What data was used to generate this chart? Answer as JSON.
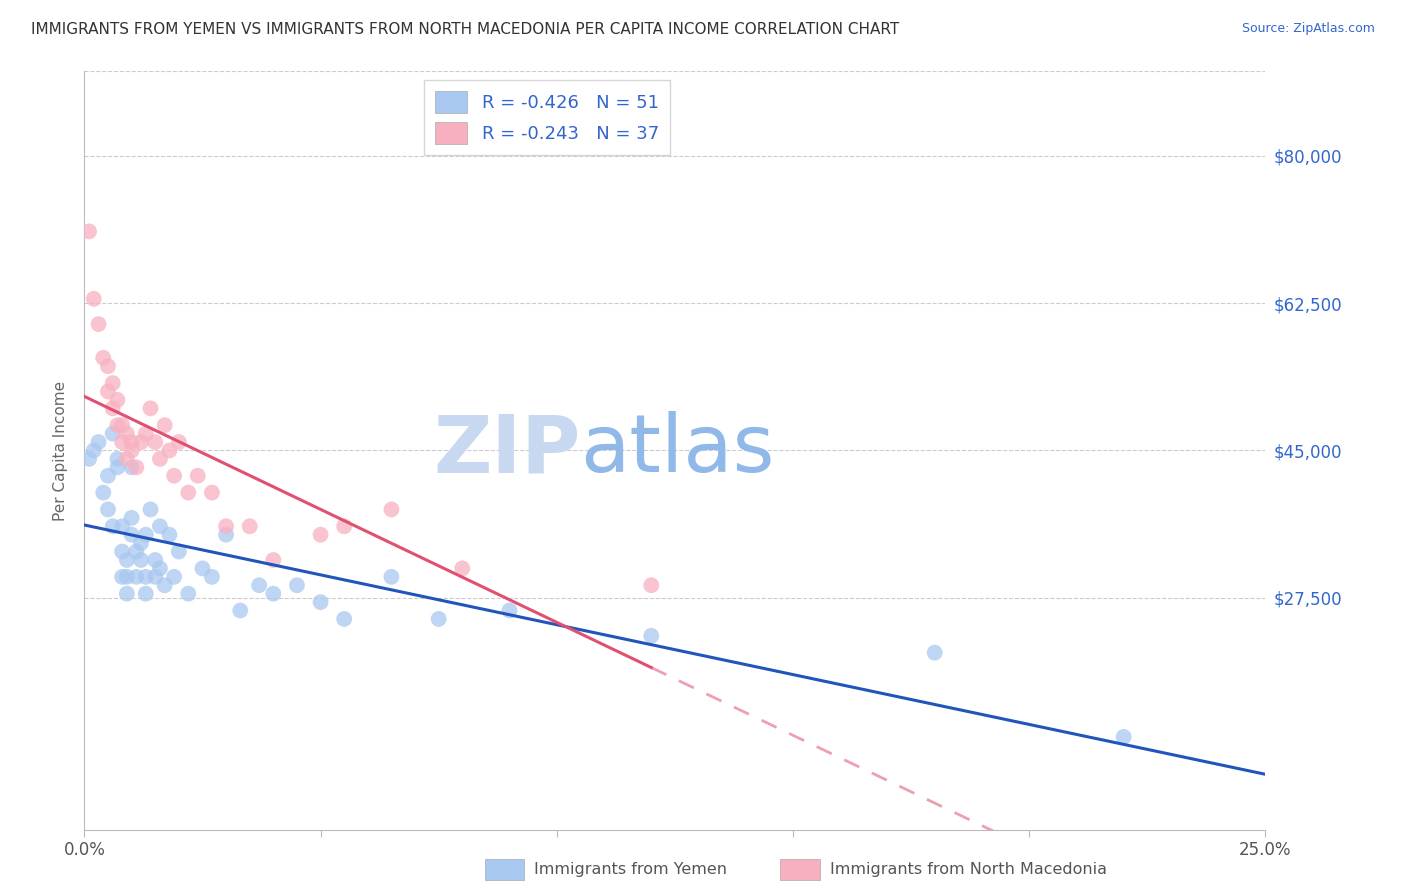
{
  "title": "IMMIGRANTS FROM YEMEN VS IMMIGRANTS FROM NORTH MACEDONIA PER CAPITA INCOME CORRELATION CHART",
  "source": "Source: ZipAtlas.com",
  "ylabel": "Per Capita Income",
  "x_min": 0.0,
  "x_max": 0.25,
  "y_min": 0,
  "y_max": 90000,
  "x_ticks": [
    0.0,
    0.05,
    0.1,
    0.15,
    0.2,
    0.25
  ],
  "x_tick_labels": [
    "0.0%",
    "",
    "",
    "",
    "",
    "25.0%"
  ],
  "y_ticks": [
    0,
    27500,
    45000,
    62500,
    80000
  ],
  "y_tick_labels": [
    "",
    "$27,500",
    "$45,000",
    "$62,500",
    "$80,000"
  ],
  "legend_label1": "Immigrants from Yemen",
  "legend_label2": "Immigrants from North Macedonia",
  "R1": -0.426,
  "N1": 51,
  "R2": -0.243,
  "N2": 37,
  "color_blue": "#A8C8F0",
  "color_pink": "#F8B0C0",
  "line_blue": "#2255BB",
  "line_pink": "#E05070",
  "watermark_zip": "ZIP",
  "watermark_atlas": "atlas",
  "watermark_color_zip": "#C8D8F0",
  "watermark_color_atlas": "#90B8E8",
  "yemen_x": [
    0.001,
    0.002,
    0.003,
    0.004,
    0.005,
    0.005,
    0.006,
    0.006,
    0.007,
    0.007,
    0.008,
    0.008,
    0.008,
    0.009,
    0.009,
    0.009,
    0.01,
    0.01,
    0.01,
    0.011,
    0.011,
    0.012,
    0.012,
    0.013,
    0.013,
    0.013,
    0.014,
    0.015,
    0.015,
    0.016,
    0.016,
    0.017,
    0.018,
    0.019,
    0.02,
    0.022,
    0.025,
    0.027,
    0.03,
    0.033,
    0.037,
    0.04,
    0.045,
    0.05,
    0.055,
    0.065,
    0.075,
    0.09,
    0.12,
    0.18,
    0.22
  ],
  "yemen_y": [
    44000,
    45000,
    46000,
    40000,
    38000,
    42000,
    36000,
    47000,
    44000,
    43000,
    30000,
    33000,
    36000,
    28000,
    30000,
    32000,
    35000,
    43000,
    37000,
    30000,
    33000,
    32000,
    34000,
    28000,
    30000,
    35000,
    38000,
    32000,
    30000,
    31000,
    36000,
    29000,
    35000,
    30000,
    33000,
    28000,
    31000,
    30000,
    35000,
    26000,
    29000,
    28000,
    29000,
    27000,
    25000,
    30000,
    25000,
    26000,
    23000,
    21000,
    11000
  ],
  "macedonia_x": [
    0.001,
    0.002,
    0.003,
    0.004,
    0.005,
    0.005,
    0.006,
    0.006,
    0.007,
    0.007,
    0.008,
    0.008,
    0.009,
    0.009,
    0.01,
    0.01,
    0.011,
    0.012,
    0.013,
    0.014,
    0.015,
    0.016,
    0.017,
    0.018,
    0.019,
    0.02,
    0.022,
    0.024,
    0.027,
    0.03,
    0.035,
    0.04,
    0.05,
    0.055,
    0.065,
    0.08,
    0.12
  ],
  "macedonia_y": [
    71000,
    63000,
    60000,
    56000,
    55000,
    52000,
    53000,
    50000,
    51000,
    48000,
    46000,
    48000,
    47000,
    44000,
    46000,
    45000,
    43000,
    46000,
    47000,
    50000,
    46000,
    44000,
    48000,
    45000,
    42000,
    46000,
    40000,
    42000,
    40000,
    36000,
    36000,
    32000,
    35000,
    36000,
    38000,
    31000,
    29000
  ]
}
